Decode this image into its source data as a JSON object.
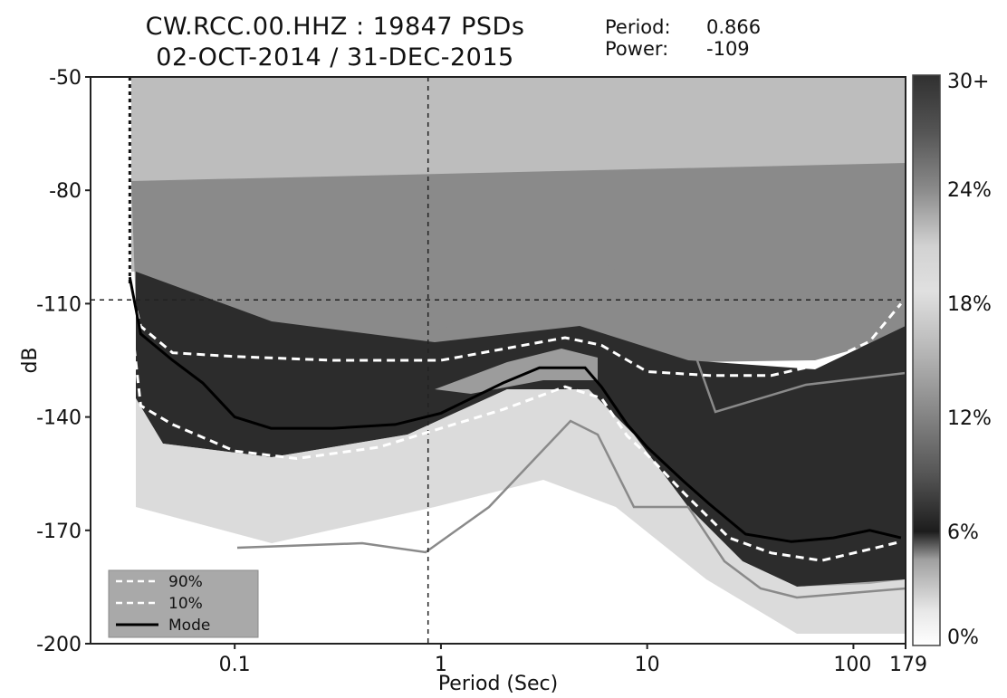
{
  "header": {
    "title_line1": "CW.RCC.00.HHZ : 19847 PSDs",
    "title_line2": "02-OCT-2014 / 31-DEC-2015",
    "period_label": "Period:",
    "period_value": "0.866",
    "power_label": "Power:",
    "power_value": "-109"
  },
  "chart_data": {
    "type": "heatmap",
    "title": "CW.RCC.00.HHZ : 19847 PSDs",
    "subtitle": "02-OCT-2014 / 31-DEC-2015",
    "xlabel": "Period (Sec)",
    "ylabel": "dB",
    "x_scale": "log",
    "xlim": [
      0.02,
      179
    ],
    "ylim": [
      -200,
      -50
    ],
    "x_tick_labels": [
      {
        "value": 0.1,
        "label": "0.1"
      },
      {
        "value": 1,
        "label": "1"
      },
      {
        "value": 10,
        "label": "10"
      },
      {
        "value": 100,
        "label": "100"
      },
      {
        "value": 179,
        "label": "179"
      }
    ],
    "y_ticks": [
      -50,
      -80,
      -110,
      -140,
      -170,
      -200
    ],
    "colorbar": {
      "labels": [
        "30+",
        "24%",
        "18%",
        "12%",
        "6%",
        "0%"
      ],
      "values": [
        30,
        24,
        18,
        12,
        6,
        0
      ]
    },
    "crosshair": {
      "period": 0.866,
      "power": -109
    },
    "legend": {
      "position": "bottom-left",
      "entries": [
        {
          "label": "90%",
          "style": "dashed",
          "color": "#ffffff"
        },
        {
          "label": "10%",
          "style": "dashed",
          "color": "#ffffff"
        },
        {
          "label": "Mode",
          "style": "solid",
          "color": "#000000"
        }
      ]
    },
    "series": [
      {
        "name": "90%",
        "points": [
          [
            0.031,
            -105
          ],
          [
            0.035,
            -116
          ],
          [
            0.05,
            -123
          ],
          [
            0.1,
            -124
          ],
          [
            0.3,
            -125
          ],
          [
            0.5,
            -125
          ],
          [
            1,
            -125
          ],
          [
            2,
            -122
          ],
          [
            4,
            -119
          ],
          [
            6,
            -121
          ],
          [
            10,
            -128
          ],
          [
            20,
            -129
          ],
          [
            40,
            -129
          ],
          [
            70,
            -126
          ],
          [
            120,
            -120
          ],
          [
            170,
            -110
          ]
        ]
      },
      {
        "name": "10%",
        "points": [
          [
            0.031,
            -111
          ],
          [
            0.035,
            -137
          ],
          [
            0.05,
            -142
          ],
          [
            0.1,
            -149
          ],
          [
            0.2,
            -151
          ],
          [
            0.5,
            -148
          ],
          [
            1,
            -143
          ],
          [
            2,
            -138
          ],
          [
            4,
            -132
          ],
          [
            6,
            -135
          ],
          [
            8,
            -145
          ],
          [
            10,
            -150
          ],
          [
            15,
            -160
          ],
          [
            25,
            -172
          ],
          [
            40,
            -176
          ],
          [
            70,
            -178
          ],
          [
            120,
            -175
          ],
          [
            170,
            -173
          ]
        ]
      },
      {
        "name": "Mode",
        "points": [
          [
            0.031,
            -103
          ],
          [
            0.035,
            -118
          ],
          [
            0.05,
            -125
          ],
          [
            0.07,
            -131
          ],
          [
            0.1,
            -140
          ],
          [
            0.15,
            -143
          ],
          [
            0.3,
            -143
          ],
          [
            0.6,
            -142
          ],
          [
            1,
            -139
          ],
          [
            2,
            -131
          ],
          [
            3,
            -127
          ],
          [
            5,
            -127
          ],
          [
            6,
            -132
          ],
          [
            8,
            -142
          ],
          [
            10,
            -148
          ],
          [
            15,
            -157
          ],
          [
            20,
            -163
          ],
          [
            30,
            -171
          ],
          [
            50,
            -173
          ],
          [
            80,
            -172
          ],
          [
            120,
            -170
          ],
          [
            170,
            -172
          ]
        ]
      }
    ]
  }
}
